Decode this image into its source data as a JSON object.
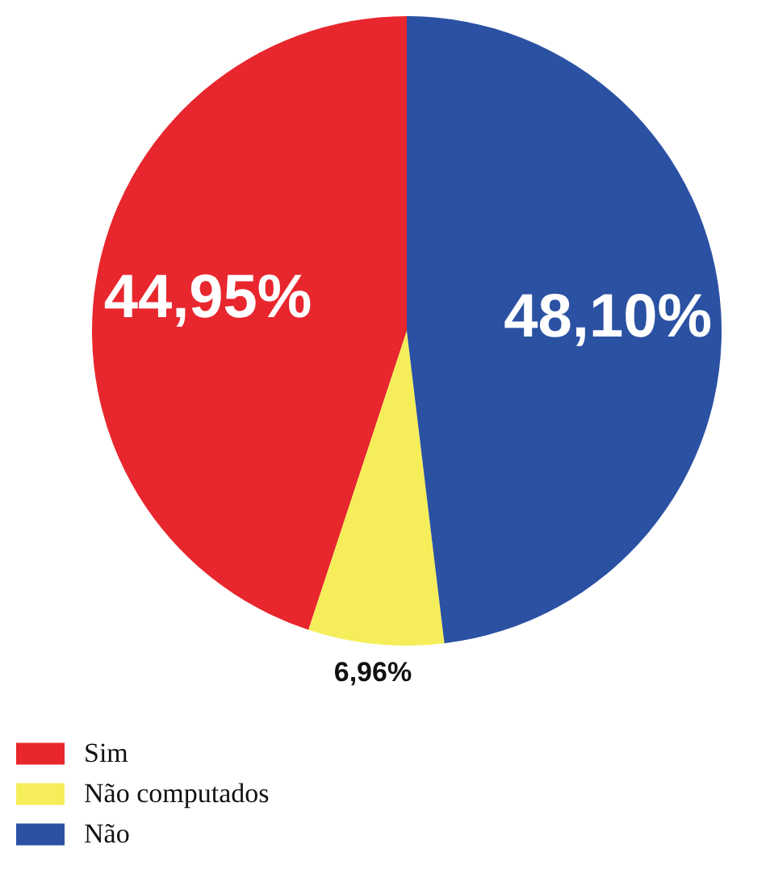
{
  "chart_data": {
    "type": "pie",
    "categories": [
      "Sim",
      "Não computados",
      "Não"
    ],
    "values": [
      44.95,
      6.96,
      48.1
    ],
    "colors": [
      "#e8262d",
      "#f5ee5a",
      "#2b51a3"
    ],
    "value_labels": [
      "44,95%",
      "6,96%",
      "48,10%"
    ],
    "legend": "bottom left"
  }
}
